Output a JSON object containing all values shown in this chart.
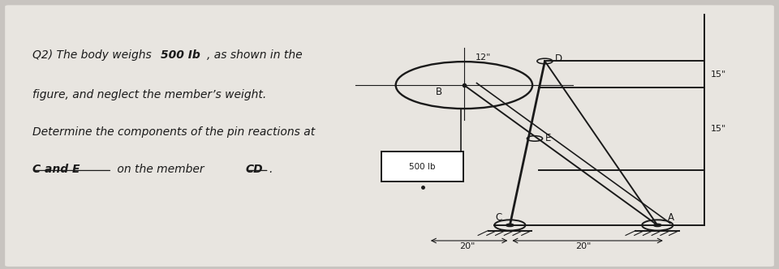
{
  "background_color": "#c8c4c0",
  "paper_color": "#e8e5e0",
  "text_color": "#1a1a1a",
  "fig_width": 9.6,
  "fig_height": 3.32,
  "line1a": "Q2) The body weighs ",
  "line1b": "500 Ib",
  "line1c": ", as shown in the",
  "line2": "figure, and neglect the member’s weight.",
  "line3": "Determine the components of the pin reactions at",
  "line4a": "C and E",
  "line4b": " on the member ",
  "line4c": "CD",
  "line4d": ".",
  "weight_label": "500 lb",
  "dim_12": "12\"",
  "dim_15": "15\"",
  "dim_20": "20\""
}
